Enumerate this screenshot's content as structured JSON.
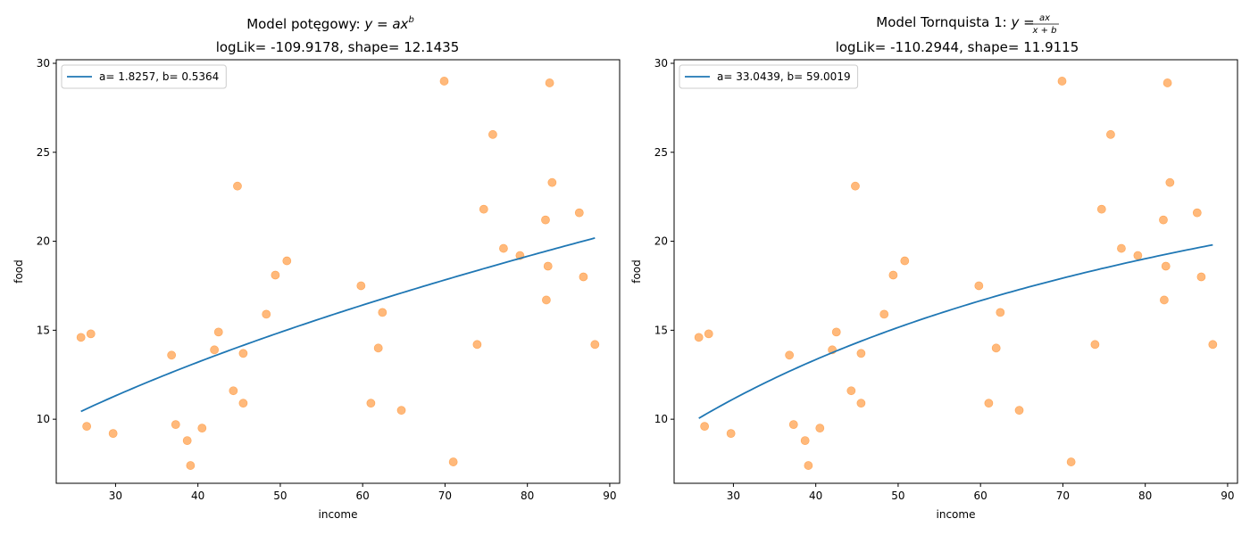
{
  "chart_data": [
    {
      "type": "scatter",
      "title_main": "Model potęgowy: ",
      "title_formula": "y = ax",
      "title_sup": "b",
      "title_line2": "logLik= -109.9178, shape= 12.1435",
      "xlabel": "income",
      "ylabel": "food",
      "xlim": [
        22.8,
        91.2
      ],
      "ylim": [
        6.4,
        30.2
      ],
      "xticks": [
        30,
        40,
        50,
        60,
        70,
        80,
        90
      ],
      "yticks": [
        10,
        15,
        20,
        25,
        30
      ],
      "grid": false,
      "legend": {
        "position": "top-left",
        "entries": [
          "a= 1.8257, b= 0.5364"
        ]
      },
      "curve": {
        "model": "power",
        "a": 1.8257,
        "b": 0.5364,
        "x_range": [
          25.8,
          88.2
        ],
        "color": "#1f77b4"
      },
      "points_color": "#ff7f0e",
      "points": [
        [
          25.8,
          14.6
        ],
        [
          26.5,
          9.6
        ],
        [
          27.0,
          14.8
        ],
        [
          29.7,
          9.2
        ],
        [
          36.8,
          13.6
        ],
        [
          37.3,
          9.7
        ],
        [
          38.7,
          8.8
        ],
        [
          39.1,
          7.4
        ],
        [
          40.5,
          9.5
        ],
        [
          42.0,
          13.9
        ],
        [
          42.5,
          14.9
        ],
        [
          44.3,
          11.6
        ],
        [
          44.8,
          23.1
        ],
        [
          45.5,
          13.7
        ],
        [
          45.5,
          10.9
        ],
        [
          48.3,
          15.9
        ],
        [
          49.4,
          18.1
        ],
        [
          50.8,
          18.9
        ],
        [
          59.8,
          17.5
        ],
        [
          61.0,
          10.9
        ],
        [
          61.9,
          14.0
        ],
        [
          62.4,
          16.0
        ],
        [
          64.7,
          10.5
        ],
        [
          69.9,
          29.0
        ],
        [
          71.0,
          7.6
        ],
        [
          73.9,
          14.2
        ],
        [
          74.7,
          21.8
        ],
        [
          75.8,
          26.0
        ],
        [
          77.1,
          19.6
        ],
        [
          79.1,
          19.2
        ],
        [
          82.2,
          21.2
        ],
        [
          82.3,
          16.7
        ],
        [
          82.5,
          18.6
        ],
        [
          82.7,
          28.9
        ],
        [
          83.0,
          23.3
        ],
        [
          86.3,
          21.6
        ],
        [
          86.8,
          18.0
        ],
        [
          88.2,
          14.2
        ]
      ]
    },
    {
      "type": "scatter",
      "title_main": "Model Tornquista 1: ",
      "title_formula": "y = ",
      "title_frac_num": "ax",
      "title_frac_den": "x + b",
      "title_line2": "logLik= -110.2944, shape= 11.9115",
      "xlabel": "income",
      "ylabel": "food",
      "xlim": [
        22.8,
        91.2
      ],
      "ylim": [
        6.4,
        30.2
      ],
      "xticks": [
        30,
        40,
        50,
        60,
        70,
        80,
        90
      ],
      "yticks": [
        10,
        15,
        20,
        25,
        30
      ],
      "grid": false,
      "legend": {
        "position": "top-left",
        "entries": [
          "a= 33.0439, b= 59.0019"
        ]
      },
      "curve": {
        "model": "tornquist1",
        "a": 33.0439,
        "b": 59.0019,
        "x_range": [
          25.8,
          88.2
        ],
        "color": "#1f77b4"
      },
      "points_color": "#ff7f0e",
      "points": [
        [
          25.8,
          14.6
        ],
        [
          26.5,
          9.6
        ],
        [
          27.0,
          14.8
        ],
        [
          29.7,
          9.2
        ],
        [
          36.8,
          13.6
        ],
        [
          37.3,
          9.7
        ],
        [
          38.7,
          8.8
        ],
        [
          39.1,
          7.4
        ],
        [
          40.5,
          9.5
        ],
        [
          42.0,
          13.9
        ],
        [
          42.5,
          14.9
        ],
        [
          44.3,
          11.6
        ],
        [
          44.8,
          23.1
        ],
        [
          45.5,
          13.7
        ],
        [
          45.5,
          10.9
        ],
        [
          48.3,
          15.9
        ],
        [
          49.4,
          18.1
        ],
        [
          50.8,
          18.9
        ],
        [
          59.8,
          17.5
        ],
        [
          61.0,
          10.9
        ],
        [
          61.9,
          14.0
        ],
        [
          62.4,
          16.0
        ],
        [
          64.7,
          10.5
        ],
        [
          69.9,
          29.0
        ],
        [
          71.0,
          7.6
        ],
        [
          73.9,
          14.2
        ],
        [
          74.7,
          21.8
        ],
        [
          75.8,
          26.0
        ],
        [
          77.1,
          19.6
        ],
        [
          79.1,
          19.2
        ],
        [
          82.2,
          21.2
        ],
        [
          82.3,
          16.7
        ],
        [
          82.5,
          18.6
        ],
        [
          82.7,
          28.9
        ],
        [
          83.0,
          23.3
        ],
        [
          86.3,
          21.6
        ],
        [
          86.8,
          18.0
        ],
        [
          88.2,
          14.2
        ]
      ]
    }
  ]
}
